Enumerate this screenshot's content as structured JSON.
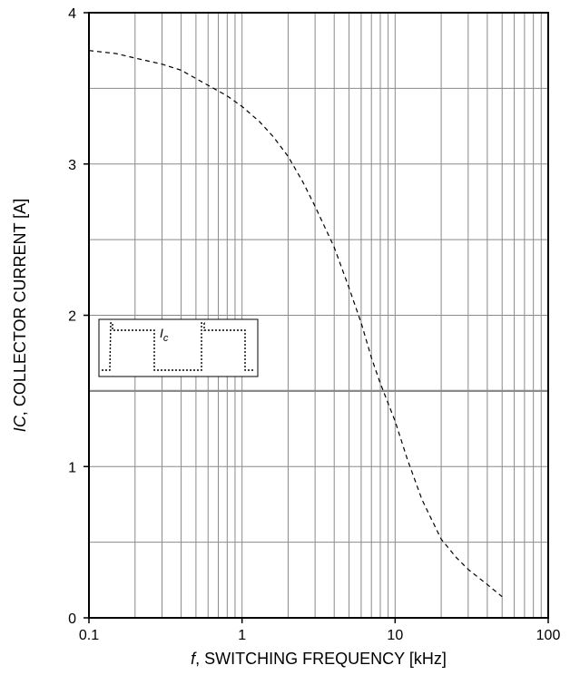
{
  "chart_data": {
    "type": "line",
    "x_scale": "log",
    "x": [
      0.1,
      0.15,
      0.2,
      0.3,
      0.4,
      0.6,
      0.8,
      1,
      1.3,
      1.6,
      2,
      2.5,
      3,
      4,
      5,
      6,
      7,
      8,
      10,
      12,
      15,
      20,
      25,
      30,
      40,
      50
    ],
    "series": [
      {
        "values": [
          3.75,
          3.73,
          3.7,
          3.66,
          3.62,
          3.52,
          3.45,
          3.38,
          3.28,
          3.18,
          3.05,
          2.88,
          2.72,
          2.45,
          2.18,
          1.95,
          1.72,
          1.55,
          1.3,
          1.05,
          0.78,
          0.52,
          0.4,
          0.32,
          0.22,
          0.14
        ],
        "color": "#000000",
        "style": "dashed"
      }
    ],
    "xlim": [
      0.1,
      100
    ],
    "ylim": [
      0,
      4
    ],
    "x_ticks": [
      "0.1",
      "1",
      "10",
      "100"
    ],
    "y_ticks": [
      "0",
      "1",
      "2",
      "3",
      "4"
    ],
    "xlabel_italic": "f",
    "xlabel_rest": ", SWITCHING FREQUENCY [kHz]",
    "ylabel_italic": "IC",
    "ylabel_rest": ", COLLECTOR CURRENT [A]",
    "grid": true,
    "inset": {
      "label_main": "I",
      "label_sub": "c"
    }
  }
}
